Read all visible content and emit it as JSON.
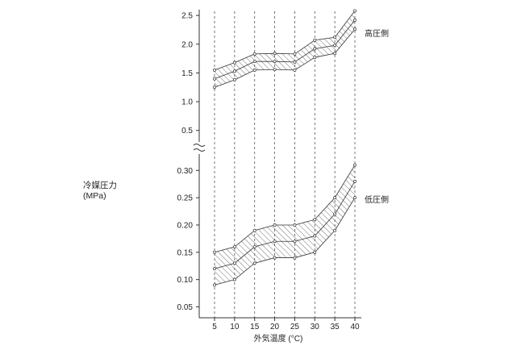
{
  "chart_data": {
    "type": "line",
    "xlabel": "外気温度 (°C)",
    "ylabel_line1": "冷媒圧力",
    "ylabel_line2": "(MPa)",
    "x": [
      5,
      10,
      15,
      20,
      25,
      30,
      35,
      40
    ],
    "panels": [
      {
        "name": "high",
        "band_label": "高圧側",
        "ylim": [
          0.3,
          2.6
        ],
        "yticks": [
          0.5,
          1.0,
          1.5,
          2.0,
          2.5
        ],
        "ytick_labels": [
          "0.5",
          "1.0",
          "1.5",
          "2.0",
          "2.5"
        ],
        "upper": [
          1.55,
          1.68,
          1.83,
          1.84,
          1.83,
          2.07,
          2.12,
          2.58
        ],
        "center": [
          1.4,
          1.53,
          1.7,
          1.7,
          1.69,
          1.92,
          1.98,
          2.42
        ],
        "lower": [
          1.25,
          1.38,
          1.55,
          1.56,
          1.55,
          1.77,
          1.84,
          2.26
        ]
      },
      {
        "name": "low",
        "band_label": "低圧側",
        "ylim": [
          0.03,
          0.33
        ],
        "yticks": [
          0.05,
          0.1,
          0.15,
          0.2,
          0.25,
          0.3
        ],
        "ytick_labels": [
          "0.05",
          "0.10",
          "0.15",
          "0.20",
          "0.25",
          "0.30"
        ],
        "upper": [
          0.15,
          0.16,
          0.19,
          0.2,
          0.2,
          0.21,
          0.25,
          0.31
        ],
        "center": [
          0.12,
          0.13,
          0.16,
          0.17,
          0.17,
          0.18,
          0.22,
          0.28
        ],
        "lower": [
          0.09,
          0.1,
          0.13,
          0.14,
          0.14,
          0.15,
          0.19,
          0.25
        ]
      }
    ],
    "grid": "vertical-dashed",
    "axis_break": true
  }
}
